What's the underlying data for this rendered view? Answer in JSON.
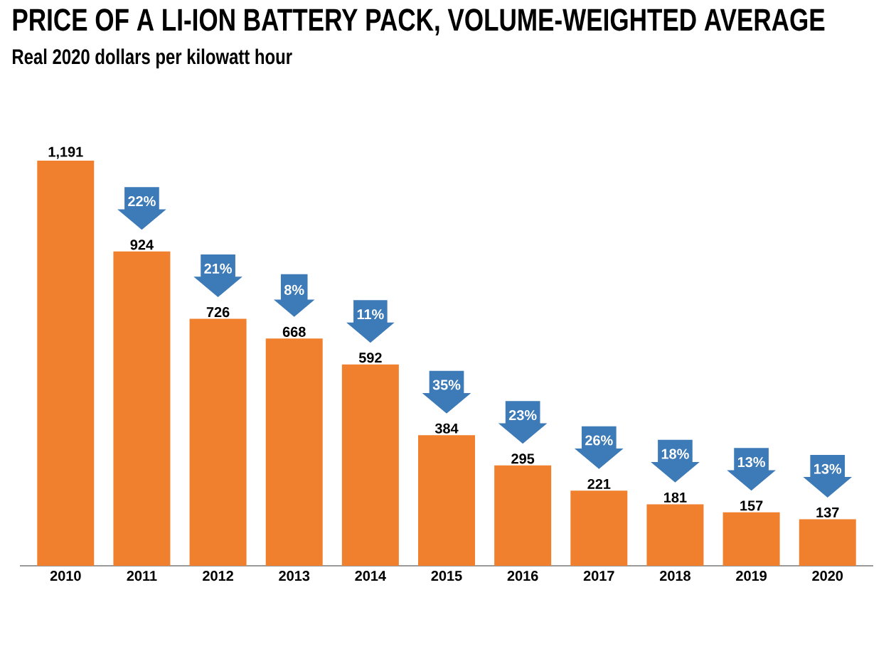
{
  "chart_data": {
    "type": "bar",
    "title": "PRICE OF A LI-ION BATTERY PACK, VOLUME-WEIGHTED AVERAGE",
    "subtitle": "Real 2020 dollars per kilowatt hour",
    "categories": [
      "2010",
      "2011",
      "2012",
      "2013",
      "2014",
      "2015",
      "2016",
      "2017",
      "2018",
      "2019",
      "2020"
    ],
    "values": [
      1191,
      924,
      726,
      668,
      592,
      384,
      295,
      221,
      181,
      157,
      137
    ],
    "color": "#f07f2e",
    "value_labels": [
      "1,191",
      "924",
      "726",
      "668",
      "592",
      "384",
      "295",
      "221",
      "181",
      "157",
      "137"
    ],
    "annotations": [
      "22%",
      "21%",
      "8%",
      "11%",
      "35%",
      "23%",
      "26%",
      "18%",
      "13%",
      "13%"
    ]
  }
}
